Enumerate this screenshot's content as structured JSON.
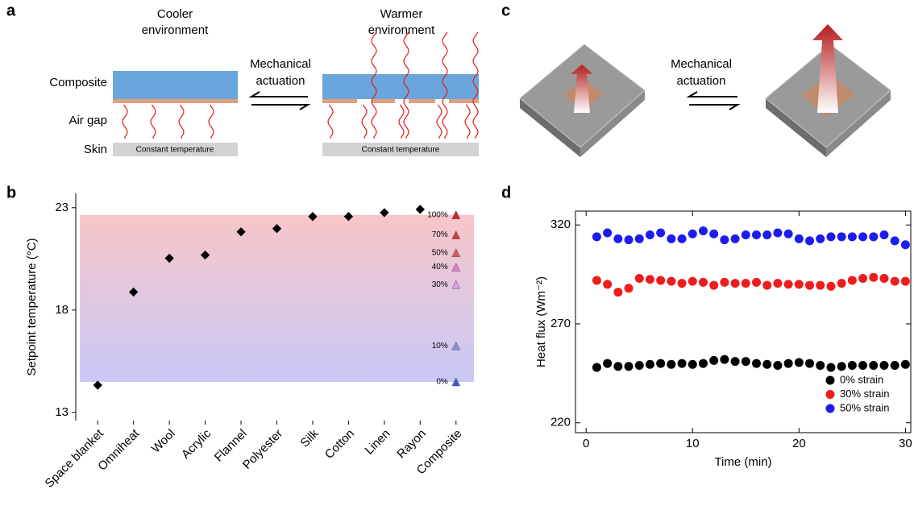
{
  "panel_labels": [
    "a",
    "b",
    "c",
    "d"
  ],
  "panel_a": {
    "left_title": [
      "Cooler",
      "environment"
    ],
    "right_title": [
      "Warmer",
      "environment"
    ],
    "actuation": [
      "Mechanical",
      "actuation"
    ],
    "layer_labels": [
      "Composite",
      "Air gap",
      "Skin"
    ],
    "skin_text": [
      "Constant temperature",
      "Constant temperature"
    ]
  },
  "panel_c": {
    "actuation": [
      "Mechanical",
      "actuation"
    ]
  },
  "chart_data": [
    {
      "type": "scatter",
      "y_label": "Setpoint temperature (°C)",
      "categories": [
        "Space blanket",
        "Omniheat",
        "Wool",
        "Acrylic",
        "Flannel",
        "Polyester",
        "Silk",
        "Cotton",
        "Linen",
        "Rayon",
        "Composite"
      ],
      "values": [
        14.33,
        18.88,
        20.53,
        20.69,
        21.82,
        21.98,
        22.57,
        22.57,
        22.76,
        22.92,
        null
      ],
      "color": "#000000",
      "composite_points": {
        "labels": [
          "100%",
          "70%",
          "50%",
          "40%",
          "30%",
          "10%",
          "0%"
        ],
        "values": [
          22.65,
          21.67,
          20.8,
          20.1,
          19.24,
          16.25,
          14.49
        ],
        "colors": [
          "#c0282e",
          "#d43a3a",
          "#dc5a5a",
          "#e07fd0",
          "#dba0e6",
          "#8a8ee0",
          "#4a52d6"
        ]
      },
      "shaded_range": [
        14.49,
        22.65
      ],
      "ylim": [
        12.6,
        23.7
      ],
      "yticks": [
        13,
        18,
        23
      ]
    },
    {
      "type": "scatter",
      "x_label": "Time (min)",
      "y_label": "Heat flux (Wm⁻²)",
      "x": [
        1,
        2,
        3,
        4,
        5,
        6,
        7,
        8,
        9,
        10,
        11,
        12,
        13,
        14,
        15,
        16,
        17,
        18,
        19,
        20,
        21,
        22,
        23,
        24,
        25,
        26,
        27,
        28,
        29,
        30
      ],
      "series": [
        {
          "name": "0% strain",
          "color": "#000000",
          "values": [
            248,
            250,
            248.5,
            248.5,
            249,
            249.5,
            250,
            249.5,
            250,
            249.5,
            250,
            251.5,
            252,
            251,
            251,
            250,
            249.5,
            249,
            250,
            250.5,
            250,
            249,
            248,
            248.5,
            249,
            249,
            249,
            249,
            249,
            249.5
          ]
        },
        {
          "name": "30% strain",
          "color": "#ee1c1c",
          "values": [
            292,
            290,
            286,
            288,
            293,
            292.5,
            292,
            291.5,
            290.5,
            291.5,
            291,
            289.5,
            291,
            290.5,
            290.5,
            291,
            289.5,
            290.5,
            290,
            290,
            289.5,
            289.5,
            289,
            290.5,
            292,
            293,
            293.5,
            293,
            291.5,
            291.5
          ]
        },
        {
          "name": "50% strain",
          "color": "#1c1cee",
          "values": [
            314,
            316,
            313,
            312.5,
            313,
            315,
            316,
            313,
            313,
            315.5,
            317,
            315.5,
            312.5,
            313,
            315,
            315,
            315,
            316,
            315.5,
            313,
            312,
            313,
            314,
            314,
            314,
            314,
            314,
            315,
            312,
            310
          ]
        }
      ],
      "xlim": [
        -1,
        30.5
      ],
      "ylim": [
        215,
        327
      ],
      "xticks": [
        0,
        10,
        20,
        30
      ],
      "yticks": [
        220,
        270,
        320
      ],
      "legend": "lower right"
    }
  ]
}
